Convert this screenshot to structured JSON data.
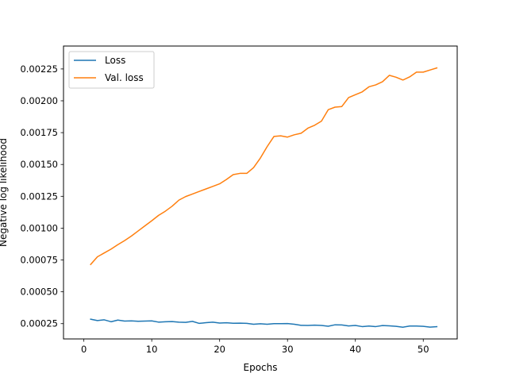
{
  "chart_data": {
    "type": "line",
    "title": "",
    "xlabel": "Epochs",
    "ylabel": "Negative log likelihood",
    "xlim": [
      -3,
      55
    ],
    "ylim": [
      0.00013,
      0.00243
    ],
    "xticks": [
      0,
      10,
      20,
      30,
      40,
      50
    ],
    "xtick_labels": [
      "0",
      "10",
      "20",
      "30",
      "40",
      "50"
    ],
    "yticks": [
      0.00025,
      0.0005,
      0.00075,
      0.001,
      0.00125,
      0.0015,
      0.00175,
      0.002,
      0.00225
    ],
    "ytick_labels": [
      "0.00025",
      "0.00050",
      "0.00075",
      "0.00100",
      "0.00125",
      "0.00150",
      "0.00175",
      "0.00200",
      "0.00225"
    ],
    "grid": false,
    "legend_position": "top-left",
    "x": [
      1,
      2,
      3,
      4,
      5,
      6,
      7,
      8,
      9,
      10,
      11,
      12,
      13,
      14,
      15,
      16,
      17,
      18,
      19,
      20,
      21,
      22,
      23,
      24,
      25,
      26,
      27,
      28,
      29,
      30,
      31,
      32,
      33,
      34,
      35,
      36,
      37,
      38,
      39,
      40,
      41,
      42,
      43,
      44,
      45,
      46,
      47,
      48,
      49,
      50,
      51,
      52
    ],
    "series": [
      {
        "name": "Loss",
        "color": "#1f77b4",
        "values": [
          0.000285,
          0.000274,
          0.00028,
          0.000265,
          0.000278,
          0.00027,
          0.000272,
          0.000269,
          0.00027,
          0.000272,
          0.000262,
          0.000265,
          0.000266,
          0.000262,
          0.00026,
          0.000268,
          0.000252,
          0.000258,
          0.000262,
          0.000255,
          0.000257,
          0.000253,
          0.000254,
          0.000252,
          0.000245,
          0.000249,
          0.000245,
          0.00025,
          0.00025,
          0.000251,
          0.000245,
          0.000237,
          0.000236,
          0.000238,
          0.000236,
          0.00023,
          0.000241,
          0.00024,
          0.000232,
          0.000236,
          0.000227,
          0.000231,
          0.000227,
          0.000235,
          0.000233,
          0.000229,
          0.000222,
          0.000231,
          0.000231,
          0.000229,
          0.000223,
          0.000226
        ]
      },
      {
        "name": "Val. loss",
        "color": "#ff7f0e",
        "values": [
          0.000715,
          0.000775,
          0.000805,
          0.000835,
          0.00087,
          0.000902,
          0.000938,
          0.000978,
          0.001018,
          0.001058,
          0.0011,
          0.001133,
          0.001172,
          0.00122,
          0.001248,
          0.001268,
          0.001288,
          0.001308,
          0.001328,
          0.001348,
          0.001382,
          0.00142,
          0.00143,
          0.00143,
          0.001475,
          0.00155,
          0.00164,
          0.00172,
          0.001725,
          0.001715,
          0.001733,
          0.001745,
          0.001785,
          0.001808,
          0.00184,
          0.00193,
          0.00195,
          0.001955,
          0.002025,
          0.002048,
          0.00207,
          0.00211,
          0.002125,
          0.00215,
          0.0022,
          0.002185,
          0.002163,
          0.002188,
          0.002225,
          0.002225,
          0.002242,
          0.002258
        ]
      }
    ]
  }
}
